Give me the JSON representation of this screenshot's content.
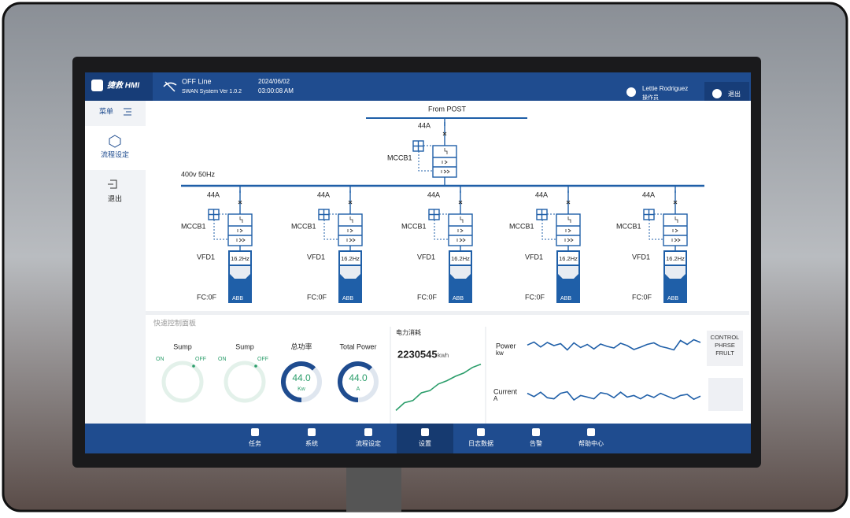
{
  "header": {
    "brand": "捷救 HMI",
    "status": "OFF Line",
    "version": "SWAN System Ver 1.0.2",
    "date": "2024/06/02",
    "time": "03:00:08 AM",
    "user": "Lettie Rodriguez",
    "role": "操作员",
    "logout": "退出"
  },
  "sidebar": {
    "menu": "菜单",
    "items": [
      "流程设定",
      "退出"
    ]
  },
  "diagram": {
    "source": "From POST",
    "main": {
      "current": "44A",
      "breaker": "MCCB1"
    },
    "bus": "400v 50Hz",
    "feeders": [
      {
        "current": "44A",
        "breaker": "MCCB1",
        "vfd": "VFD1",
        "freq": "16.2Hz",
        "fc": "FC:0F",
        "brand": "ABB"
      },
      {
        "current": "44A",
        "breaker": "MCCB1",
        "vfd": "VFD1",
        "freq": "16.2Hz",
        "fc": "FC:0F",
        "brand": "ABB"
      },
      {
        "current": "44A",
        "breaker": "MCCB1",
        "vfd": "VFD1",
        "freq": "16.2Hz",
        "fc": "FC:0F",
        "brand": "ABB"
      },
      {
        "current": "44A",
        "breaker": "MCCB1",
        "vfd": "VFD1",
        "freq": "16.2Hz",
        "fc": "FC:0F",
        "brand": "ABB"
      },
      {
        "current": "44A",
        "breaker": "MCCB1",
        "vfd": "VFD1",
        "freq": "16.2Hz",
        "fc": "FC:0F",
        "brand": "ABB"
      }
    ]
  },
  "panel": {
    "title": "快速控制面板",
    "gauges": [
      {
        "label": "Sump",
        "on": "ON",
        "off": "OFF"
      },
      {
        "label": "Sump",
        "on": "ON",
        "off": "OFF"
      },
      {
        "label": "总功率",
        "value": "44.0",
        "unit": "Kw"
      },
      {
        "label": "Total Power",
        "value": "44.0",
        "unit": "A"
      }
    ],
    "energy": {
      "title": "电力消耗",
      "value": "2230545",
      "unit": "kwh",
      "trend": [
        8,
        22,
        26,
        40,
        44,
        56,
        62,
        70,
        76,
        86,
        92
      ]
    },
    "power": {
      "label": "Power",
      "unit": "kw",
      "values": [
        55,
        70,
        45,
        68,
        52,
        62,
        30,
        66,
        42,
        58,
        35,
        60,
        48,
        40,
        64,
        52,
        32,
        44,
        58,
        66,
        48,
        40,
        30,
        78,
        58,
        82,
        68
      ]
    },
    "current": {
      "label": "Current",
      "unit": "A",
      "values": [
        55,
        40,
        60,
        35,
        30,
        55,
        62,
        25,
        45,
        38,
        30,
        58,
        52,
        35,
        60,
        38,
        45,
        30,
        48,
        36,
        55,
        42,
        30,
        45,
        50,
        28,
        42
      ]
    },
    "button": "CONTROL PHRSE FRULT"
  },
  "nav": {
    "items": [
      "任务",
      "系统",
      "流程设定",
      "设置",
      "日志数据",
      "告警",
      "帮助中心"
    ],
    "active": 3
  }
}
